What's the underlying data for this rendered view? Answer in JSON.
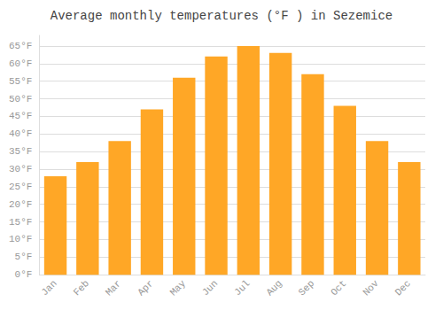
{
  "chart_data": {
    "type": "bar",
    "title": "Average monthly temperatures (°F ) in Sezemice",
    "categories": [
      "Jan",
      "Feb",
      "Mar",
      "Apr",
      "May",
      "Jun",
      "Jul",
      "Aug",
      "Sep",
      "Oct",
      "Nov",
      "Dec"
    ],
    "values": [
      28,
      32,
      38,
      47,
      56,
      62,
      65,
      63,
      57,
      48,
      38,
      32
    ],
    "color": "#FFA726",
    "ylim": [
      0,
      68
    ],
    "yticks": [
      {
        "value": 0,
        "label": "0°F"
      },
      {
        "value": 5,
        "label": "5°F"
      },
      {
        "value": 10,
        "label": "10°F"
      },
      {
        "value": 15,
        "label": "15°F"
      },
      {
        "value": 20,
        "label": "20°F"
      },
      {
        "value": 25,
        "label": "25°F"
      },
      {
        "value": 30,
        "label": "30°F"
      },
      {
        "value": 35,
        "label": "35°F"
      },
      {
        "value": 40,
        "label": "40°F"
      },
      {
        "value": 45,
        "label": "45°F"
      },
      {
        "value": 50,
        "label": "50°F"
      },
      {
        "value": 55,
        "label": "55°F"
      },
      {
        "value": 60,
        "label": "60°F"
      },
      {
        "value": 65,
        "label": "65°F"
      }
    ],
    "grid": true
  }
}
